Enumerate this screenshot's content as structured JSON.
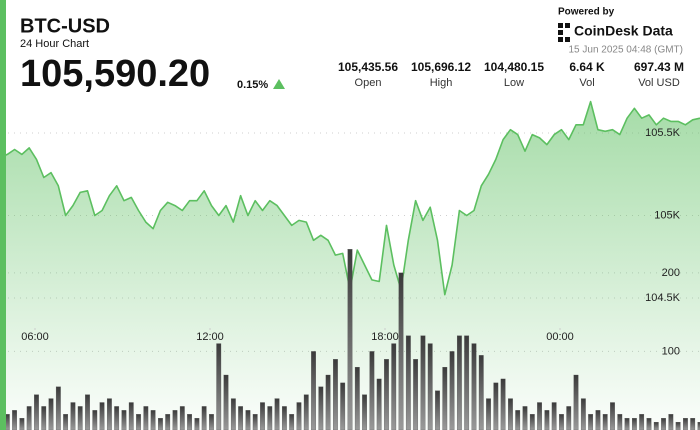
{
  "header": {
    "symbol": "BTC-USD",
    "subtitle": "24 Hour Chart",
    "price": "105,590.20",
    "change": "0.15%",
    "stats": [
      {
        "value": "105,435.56",
        "label": "Open"
      },
      {
        "value": "105,696.12",
        "label": "High"
      },
      {
        "value": "104,480.15",
        "label": "Low"
      },
      {
        "value": "6.64 K",
        "label": "Vol"
      },
      {
        "value": "697.43 M",
        "label": "Vol USD"
      }
    ],
    "powered_by": "Powered by",
    "brand": "CoinDesk Data",
    "timestamp": "15 Jun 2025 04:48 (GMT)"
  },
  "chart_data": {
    "type": "line",
    "x": [
      4.8,
      5.05,
      5.3,
      5.55,
      5.8,
      6.05,
      6.3,
      6.55,
      6.8,
      7.05,
      7.3,
      7.55,
      7.8,
      8.05,
      8.3,
      8.55,
      8.8,
      9.05,
      9.3,
      9.55,
      9.8,
      10.05,
      10.3,
      10.55,
      10.8,
      11.05,
      11.3,
      11.55,
      11.8,
      12.05,
      12.3,
      12.55,
      12.8,
      13.05,
      13.3,
      13.55,
      13.8,
      14.05,
      14.3,
      14.55,
      14.8,
      15.05,
      15.3,
      15.55,
      15.8,
      16.05,
      16.3,
      16.55,
      16.8,
      17.05,
      17.3,
      17.55,
      17.8,
      18.05,
      18.3,
      18.55,
      18.8,
      19.05,
      19.3,
      19.55,
      19.8,
      20.05,
      20.3,
      20.55,
      20.8,
      21.05,
      21.3,
      21.55,
      21.8,
      22.05,
      22.3,
      22.55,
      22.8,
      23.05,
      23.3,
      23.55,
      23.8,
      24.05,
      24.3,
      24.55,
      24.8,
      25.05,
      25.3,
      25.55,
      25.8,
      26.05,
      26.3,
      26.55,
      26.8,
      27.05,
      27.3,
      27.55,
      27.8,
      28.05,
      28.3,
      28.55,
      28.8
    ],
    "xlim": [
      4.8,
      28.8
    ],
    "xticks": [
      {
        "value": 6,
        "label": "06:00"
      },
      {
        "value": 12,
        "label": "12:00"
      },
      {
        "value": 18,
        "label": "18:00"
      },
      {
        "value": 24,
        "label": "00:00"
      }
    ],
    "ylim": [
      103700,
      105700
    ],
    "yticks": [
      {
        "value": 104500,
        "label": "104.5K"
      },
      {
        "value": 105000,
        "label": "105K"
      },
      {
        "value": 105500,
        "label": "105.5K"
      }
    ],
    "y2lim": [
      0,
      420
    ],
    "y2ticks": [
      100,
      200
    ],
    "grid": true,
    "series": [
      {
        "type": "area",
        "color": "#5cbf60",
        "values": [
          105350,
          105370,
          105400,
          105370,
          105410,
          105340,
          105230,
          105260,
          105180,
          105000,
          105060,
          105140,
          105150,
          105000,
          105030,
          105120,
          105180,
          105090,
          105110,
          105030,
          104960,
          104920,
          105030,
          105080,
          105060,
          105030,
          105090,
          105090,
          105150,
          105060,
          105000,
          105060,
          104960,
          105120,
          105000,
          105090,
          105030,
          105090,
          105060,
          105000,
          104940,
          104970,
          104960,
          104850,
          104880,
          104850,
          104760,
          104770,
          104550,
          104790,
          104700,
          104610,
          104600,
          104940,
          104700,
          104550,
          104850,
          105090,
          104970,
          105050,
          104850,
          104520,
          104700,
          105030,
          105000,
          105030,
          105180,
          105250,
          105340,
          105460,
          105520,
          105490,
          105390,
          105490,
          105470,
          105430,
          105490,
          105520,
          105460,
          105550,
          105550,
          105690,
          105520,
          105510,
          105520,
          105490,
          105590,
          105650,
          105590,
          105610,
          105550,
          105590,
          105570,
          105570,
          105550,
          105580,
          105590
        ]
      },
      {
        "type": "bar",
        "axis": "y2",
        "color": "#555555",
        "values": [
          15,
          20,
          25,
          15,
          30,
          45,
          30,
          40,
          55,
          20,
          35,
          30,
          45,
          25,
          35,
          40,
          30,
          25,
          35,
          20,
          30,
          25,
          15,
          20,
          25,
          30,
          20,
          15,
          30,
          20,
          110,
          70,
          40,
          30,
          25,
          20,
          35,
          30,
          40,
          30,
          20,
          35,
          45,
          100,
          55,
          70,
          90,
          60,
          230,
          80,
          45,
          100,
          65,
          90,
          110,
          200,
          120,
          90,
          120,
          110,
          50,
          80,
          100,
          120,
          120,
          110,
          95,
          40,
          60,
          65,
          40,
          25,
          30,
          20,
          35,
          25,
          35,
          20,
          30,
          70,
          40,
          20,
          25,
          20,
          35,
          20,
          15,
          15,
          20,
          15,
          10,
          15,
          20,
          10,
          15,
          15,
          10
        ]
      }
    ]
  }
}
